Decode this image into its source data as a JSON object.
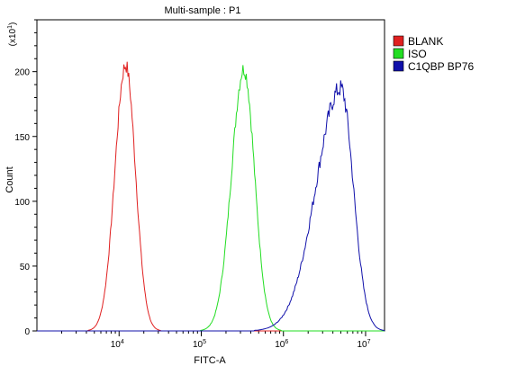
{
  "chart_data": {
    "type": "line",
    "title": "Multi-sample : P1",
    "xlabel": "FITC-A",
    "ylabel": "Count",
    "y_multiplier_label": "(x10",
    "y_multiplier_exp": "1",
    "y_multiplier_close": ")",
    "x_scale": "log",
    "xlim": [
      1000,
      17000000
    ],
    "ylim": [
      0,
      240
    ],
    "x_ticks": [
      {
        "value": 10000,
        "base": "10",
        "exp": "4"
      },
      {
        "value": 100000,
        "base": "10",
        "exp": "5"
      },
      {
        "value": 1000000,
        "base": "10",
        "exp": "6"
      },
      {
        "value": 10000000,
        "base": "10",
        "exp": "7"
      }
    ],
    "y_ticks": [
      {
        "value": 0,
        "label": "0"
      },
      {
        "value": 50,
        "label": "50"
      },
      {
        "value": 100,
        "label": "100"
      },
      {
        "value": 150,
        "label": "150"
      },
      {
        "value": 200,
        "label": "200"
      }
    ],
    "legend_position": "top-right",
    "series": [
      {
        "name": "BLANK",
        "color": "#e02020",
        "mode": 12000,
        "peak": 205,
        "sigma_left": 0.13,
        "sigma_right": 0.12,
        "noise": 0.03
      },
      {
        "name": "ISO",
        "color": "#22dd22",
        "mode": 330000,
        "peak": 202,
        "sigma_left": 0.15,
        "sigma_right": 0.13,
        "noise": 0.03
      },
      {
        "name": "C1QBP BP76",
        "color": "#1010aa",
        "mode": 5000000,
        "peak": 187,
        "sigma_left": 0.3,
        "sigma_right": 0.15,
        "noise": 0.04
      }
    ]
  }
}
